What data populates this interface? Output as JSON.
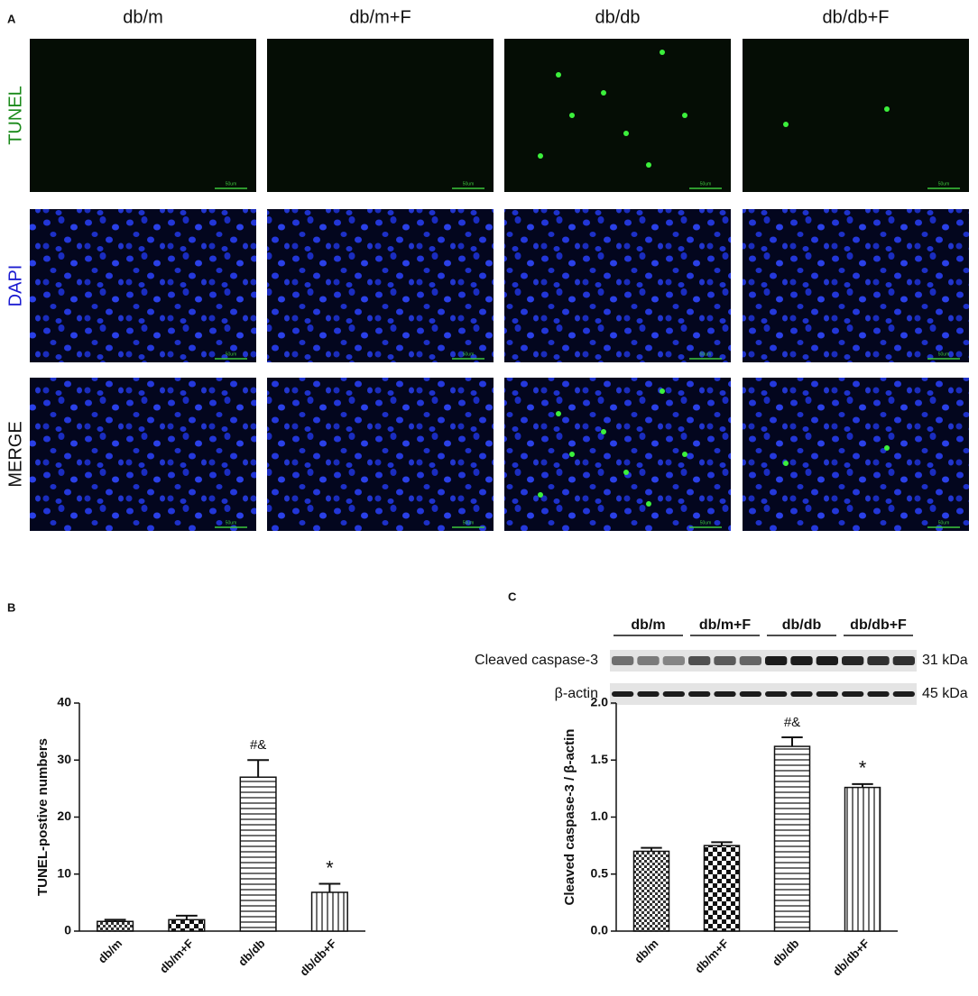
{
  "panel_a": {
    "label": "A",
    "columns": [
      "db/m",
      "db/m+F",
      "db/db",
      "db/db+F"
    ],
    "rows": [
      {
        "label": "TUNEL",
        "color": "#1a8a1a"
      },
      {
        "label": "DAPI",
        "color": "#1a1ad0"
      },
      {
        "label": "MERGE",
        "color": "#111111"
      }
    ],
    "scale_bar": "50um"
  },
  "western_blot": {
    "groups": [
      "db/m",
      "db/m+F",
      "db/db",
      "db/db+F"
    ],
    "rows": [
      {
        "label": "Cleaved caspase-3",
        "size": "31 kDa"
      },
      {
        "label": "β-actin",
        "size": "45 kDa"
      }
    ]
  },
  "chart_data": [
    {
      "type": "bar",
      "panel": "B",
      "y_label": "TUNEL-postive numbers",
      "categories": [
        "db/m",
        "db/m+F",
        "db/db",
        "db/db+F"
      ],
      "values": [
        1.7,
        2.0,
        27,
        6.8
      ],
      "errors": [
        0.3,
        0.7,
        3,
        1.5
      ],
      "value_annotations": [
        null,
        null,
        "#&",
        "*"
      ],
      "patterns": [
        "checker-small",
        "checker",
        "horizontal",
        "vertical"
      ],
      "ylim": [
        0,
        40
      ],
      "yticks": [
        0,
        10,
        20,
        30,
        40
      ]
    },
    {
      "type": "bar",
      "panel": "C",
      "y_label": "Cleaved caspase-3 / β-actin",
      "categories": [
        "db/m",
        "db/m+F",
        "db/db",
        "db/db+F"
      ],
      "values": [
        0.7,
        0.75,
        1.62,
        1.26
      ],
      "errors": [
        0.03,
        0.03,
        0.08,
        0.03
      ],
      "value_annotations": [
        null,
        null,
        "#&",
        "*"
      ],
      "patterns": [
        "checker-small",
        "checker",
        "horizontal",
        "vertical"
      ],
      "ylim": [
        0,
        2.0
      ],
      "yticks": [
        {
          "value": 0,
          "label": "0.0"
        },
        0.5,
        {
          "value": 1,
          "label": "1.0"
        },
        1.5,
        {
          "value": 2,
          "label": "2.0"
        }
      ]
    }
  ]
}
